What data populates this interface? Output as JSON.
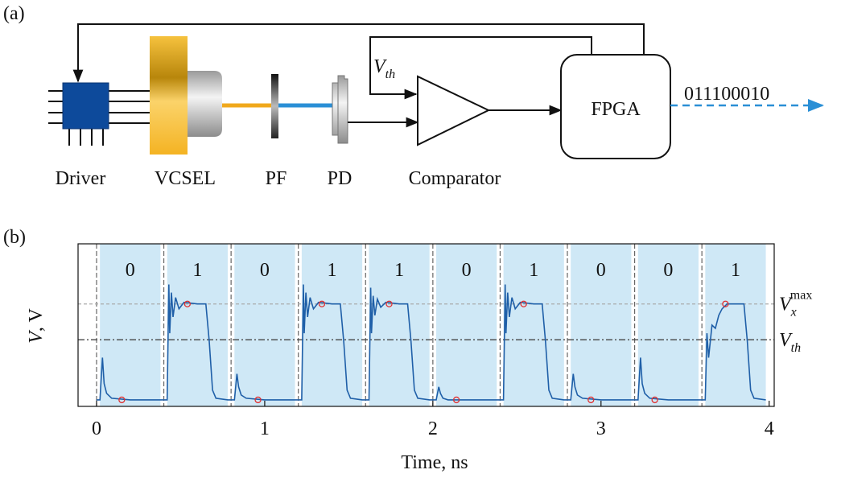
{
  "panel_a": {
    "label": "(a)",
    "driver": "Driver",
    "vcsel": "VCSEL",
    "pf": "PF",
    "pd": "PD",
    "comparator": "Comparator",
    "fpga": "FPGA",
    "bits_out": "011100010",
    "vth": {
      "symbol": "V",
      "sub": "th"
    }
  },
  "chart_data": {
    "type": "line",
    "panel_label": "(b)",
    "x_label": "Time, ns",
    "y_label": {
      "symbol": "V",
      "unit": ", V"
    },
    "xlim": [
      -0.11,
      4.03
    ],
    "ylim": [
      0,
      1
    ],
    "xticks": [
      0,
      1,
      2,
      3,
      4
    ],
    "slots": [
      0,
      0.4,
      0.8,
      1.2,
      1.6,
      2.0,
      2.4,
      2.8,
      3.2,
      3.6
    ],
    "bits": [
      "0",
      "1",
      "0",
      "1",
      "1",
      "0",
      "1",
      "0",
      "0",
      "1"
    ],
    "shade_color": "#cfe8f6",
    "hlines": [
      {
        "symbol": "V",
        "sub": "x",
        "sup": "max",
        "value": 0.63,
        "dash": "4,3",
        "color": "#aaaaaa"
      },
      {
        "symbol": "V",
        "sub": "th",
        "value": 0.41,
        "dash": "8,3,2,3",
        "color": "#444444"
      }
    ],
    "waveform": {
      "color": "#1f5fa8",
      "x": [
        0.0,
        0.02,
        0.035,
        0.045,
        0.06,
        0.09,
        0.2,
        0.38,
        0.42,
        0.43,
        0.435,
        0.445,
        0.455,
        0.47,
        0.49,
        0.52,
        0.6,
        0.65,
        0.67,
        0.69,
        0.71,
        0.78,
        0.82,
        0.835,
        0.845,
        0.86,
        0.89,
        1.0,
        1.18,
        1.22,
        1.23,
        1.235,
        1.245,
        1.255,
        1.27,
        1.29,
        1.32,
        1.4,
        1.45,
        1.47,
        1.49,
        1.51,
        1.58,
        1.62,
        1.63,
        1.635,
        1.645,
        1.655,
        1.67,
        1.69,
        1.72,
        1.8,
        1.85,
        1.87,
        1.89,
        1.91,
        1.98,
        2.02,
        2.035,
        2.045,
        2.06,
        2.09,
        2.38,
        2.42,
        2.43,
        2.435,
        2.445,
        2.455,
        2.47,
        2.49,
        2.52,
        2.6,
        2.65,
        2.67,
        2.69,
        2.71,
        2.78,
        2.82,
        2.835,
        2.845,
        2.86,
        2.89,
        3.0,
        3.18,
        3.22,
        3.235,
        3.245,
        3.26,
        3.29,
        3.4,
        3.58,
        3.62,
        3.63,
        3.64,
        3.66,
        3.68,
        3.7,
        3.72,
        3.75,
        3.85,
        3.87,
        3.89,
        3.91,
        3.98
      ],
      "values": [
        0.04,
        0.04,
        0.3,
        0.14,
        0.08,
        0.05,
        0.04,
        0.04,
        0.04,
        0.75,
        0.45,
        0.7,
        0.55,
        0.67,
        0.6,
        0.64,
        0.63,
        0.63,
        0.4,
        0.1,
        0.05,
        0.04,
        0.04,
        0.2,
        0.12,
        0.07,
        0.05,
        0.04,
        0.04,
        0.04,
        0.75,
        0.45,
        0.7,
        0.55,
        0.67,
        0.6,
        0.64,
        0.63,
        0.63,
        0.4,
        0.1,
        0.05,
        0.04,
        0.04,
        0.73,
        0.45,
        0.68,
        0.56,
        0.66,
        0.61,
        0.64,
        0.63,
        0.63,
        0.4,
        0.1,
        0.05,
        0.04,
        0.04,
        0.12,
        0.08,
        0.05,
        0.04,
        0.04,
        0.04,
        0.75,
        0.45,
        0.7,
        0.55,
        0.67,
        0.6,
        0.64,
        0.63,
        0.63,
        0.4,
        0.1,
        0.05,
        0.04,
        0.04,
        0.2,
        0.12,
        0.07,
        0.05,
        0.04,
        0.04,
        0.04,
        0.3,
        0.14,
        0.08,
        0.05,
        0.04,
        0.04,
        0.04,
        0.45,
        0.3,
        0.5,
        0.48,
        0.56,
        0.6,
        0.63,
        0.63,
        0.4,
        0.1,
        0.05,
        0.04
      ]
    },
    "samples": {
      "color": "#e03030",
      "x": [
        0.15,
        0.54,
        0.96,
        1.34,
        1.74,
        2.14,
        2.54,
        2.94,
        3.32,
        3.74
      ],
      "values": [
        0.04,
        0.63,
        0.04,
        0.63,
        0.63,
        0.04,
        0.63,
        0.04,
        0.04,
        0.63
      ]
    }
  }
}
